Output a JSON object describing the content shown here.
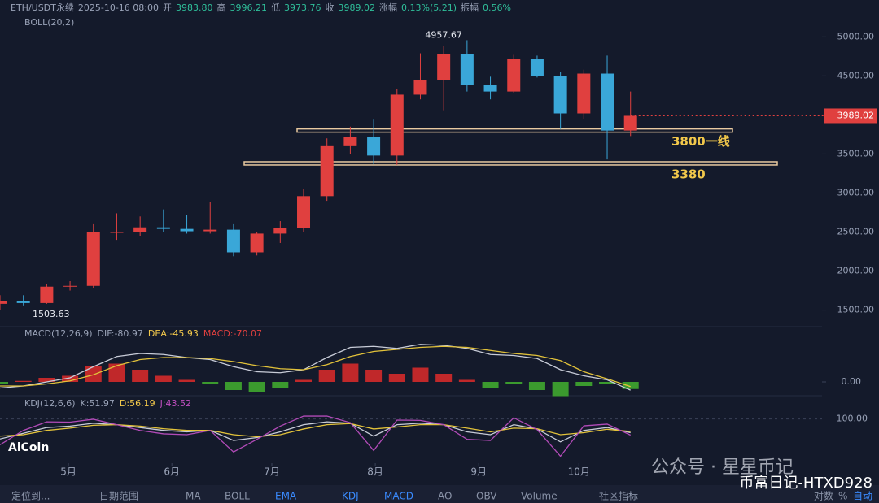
{
  "header": {
    "symbol": "ETH/USDT永续",
    "time": "2025-10-16 08:00",
    "fields": [
      {
        "k": "开",
        "v": "3983.80"
      },
      {
        "k": "高",
        "v": "3996.21"
      },
      {
        "k": "低",
        "v": "3973.76"
      },
      {
        "k": "收",
        "v": "3989.02"
      },
      {
        "k": "涨幅",
        "v": "0.13%(5.21)"
      },
      {
        "k": "振幅",
        "v": "0.56%"
      }
    ],
    "boll": "BOLL(20,2)"
  },
  "chart_data": {
    "type": "candlestick",
    "up_color": "#e0403f",
    "down_color": "#3aa7d8",
    "open": [
      1580,
      1620,
      1590,
      1800,
      1810,
      2500,
      2500,
      2560,
      2540,
      2510,
      2530,
      2240,
      2480,
      2550,
      2960,
      3600,
      3720,
      3480,
      4260,
      4450,
      4780,
      4380,
      4300,
      4720,
      4500,
      4020,
      4530,
      3800
    ],
    "high": [
      1690,
      1690,
      1830,
      1870,
      2600,
      2740,
      2700,
      2790,
      2720,
      2880,
      2600,
      2500,
      2640,
      3050,
      3700,
      3850,
      3940,
      4330,
      4790,
      4880,
      4957.67,
      4490,
      4770,
      4760,
      4550,
      4580,
      4760,
      4300
    ],
    "low": [
      1503.63,
      1560,
      1580,
      1750,
      1780,
      2400,
      2450,
      2500,
      2480,
      2480,
      2190,
      2200,
      2360,
      2500,
      2900,
      3500,
      3370,
      3360,
      4200,
      4060,
      4300,
      4200,
      4280,
      4480,
      3820,
      3950,
      3430,
      3730
    ],
    "close": [
      1620,
      1590,
      1800,
      1810,
      2500,
      2500,
      2560,
      2540,
      2510,
      2530,
      2240,
      2480,
      2550,
      2960,
      3600,
      3720,
      3480,
      4260,
      4450,
      4780,
      4380,
      4300,
      4720,
      4500,
      4020,
      4530,
      3800,
      3989.02
    ],
    "xlim": [
      0,
      35.2
    ],
    "xticks": [
      {
        "value": 2.93,
        "label": "5月"
      },
      {
        "value": 7.36,
        "label": "6月"
      },
      {
        "value": 11.64,
        "label": "7月"
      },
      {
        "value": 16.07,
        "label": "8月"
      },
      {
        "value": 20.5,
        "label": "9月"
      },
      {
        "value": 24.79,
        "label": "10月"
      }
    ],
    "ylim": [
      1360,
      5160
    ],
    "yticks": [
      {
        "value": 1500,
        "label": "1500.00"
      },
      {
        "value": 2000,
        "label": "2000.00"
      },
      {
        "value": 2500,
        "label": "2500.00"
      },
      {
        "value": 3000,
        "label": "3000.00"
      },
      {
        "value": 3500,
        "label": "3500.00"
      },
      {
        "value": 4000,
        "label": "4000.00"
      },
      {
        "value": 4500,
        "label": "4500.00"
      },
      {
        "value": 5000,
        "label": "5000.00"
      }
    ],
    "annotations": [
      {
        "text": "4957.67",
        "value": 4957.67,
        "index": 20
      },
      {
        "text": "1503.63",
        "value": 1503.63,
        "index": 0
      }
    ],
    "levels": [
      {
        "value": 3800,
        "label": "3800一线"
      },
      {
        "value": 3380,
        "label": "3380"
      }
    ],
    "macd": {
      "name": "MACD(12,26,9)",
      "dif_label": "DIF:-80.97",
      "dea_label": "DEA:-45.93",
      "macd_label": "MACD:-70.07",
      "ylim": [
        -280,
        400
      ],
      "yticks": [
        {
          "value": 0,
          "label": "0.00"
        }
      ],
      "hist": [
        -20,
        10,
        40,
        60,
        160,
        180,
        120,
        60,
        20,
        -20,
        -80,
        -100,
        -60,
        20,
        120,
        180,
        120,
        80,
        140,
        80,
        20,
        -60,
        -20,
        -80,
        -140,
        -40,
        -20,
        -70.07
      ],
      "dif": [
        -60,
        -40,
        0,
        40,
        150,
        250,
        280,
        270,
        240,
        220,
        150,
        100,
        90,
        120,
        240,
        340,
        350,
        330,
        370,
        360,
        330,
        270,
        260,
        230,
        120,
        60,
        20,
        -80.97
      ],
      "dea": [
        -40,
        -40,
        -20,
        10,
        70,
        160,
        220,
        240,
        240,
        230,
        200,
        160,
        130,
        120,
        170,
        250,
        300,
        320,
        340,
        350,
        340,
        310,
        280,
        260,
        210,
        100,
        30,
        -45.93
      ]
    },
    "kdj": {
      "name": "KDJ(12,6,6)",
      "k_label": "K:51.97",
      "d_label": "D:56.19",
      "j_label": "J:43.52",
      "ylim": [
        -40,
        130
      ],
      "yticks": [
        {
          "value": 100,
          "label": "100.00"
        }
      ],
      "k": [
        30,
        50,
        70,
        75,
        85,
        80,
        70,
        60,
        55,
        60,
        25,
        35,
        55,
        80,
        90,
        85,
        40,
        80,
        85,
        80,
        55,
        45,
        80,
        65,
        20,
        60,
        70,
        51.97
      ],
      "d": [
        40,
        45,
        60,
        68,
        78,
        80,
        75,
        66,
        60,
        60,
        45,
        38,
        45,
        65,
        80,
        84,
        65,
        72,
        80,
        80,
        68,
        55,
        68,
        66,
        45,
        52,
        64,
        56.19
      ],
      "j": [
        10,
        60,
        90,
        89,
        99,
        80,
        60,
        48,
        45,
        60,
        -15,
        29,
        75,
        110,
        110,
        87,
        -10,
        96,
        95,
        80,
        29,
        25,
        104,
        63,
        -30,
        76,
        82,
        43.52
      ]
    }
  },
  "toolbar": [
    "定位到...",
    "日期范围",
    "MA",
    "BOLL",
    "EMA",
    "KDJ",
    "MACD",
    "AO",
    "OBV",
    "Volume",
    "社区指标",
    "对数",
    "%",
    "自动"
  ],
  "watermark": {
    "brand": "AiCoin",
    "account": "公众号 · 星星币记",
    "author": "币富日记-HTXD928"
  }
}
